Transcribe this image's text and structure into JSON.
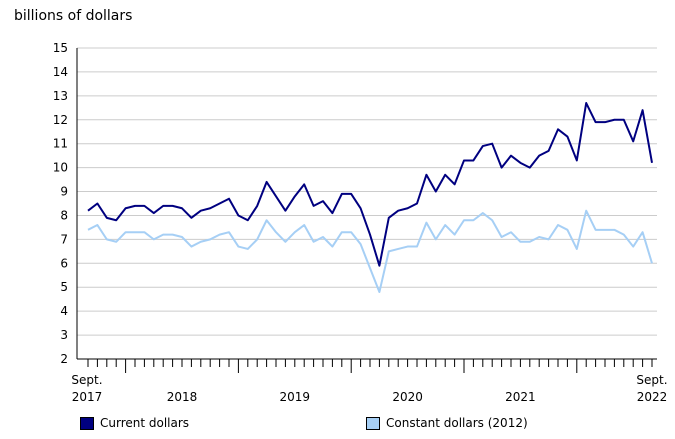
{
  "chart_data": {
    "type": "line",
    "ylabel": "billions of dollars",
    "ylim": [
      2,
      15
    ],
    "yticks": [
      2,
      3,
      4,
      5,
      6,
      7,
      8,
      9,
      10,
      11,
      12,
      13,
      14,
      15
    ],
    "grid": true,
    "x_start_label": [
      "Sept.",
      "2017"
    ],
    "x_end_label": [
      "Sept.",
      "2022"
    ],
    "x_year_labels": [
      "2018",
      "2019",
      "2020",
      "2021"
    ],
    "legend_placement": "bottom",
    "x": [
      "2017-09",
      "2017-10",
      "2017-11",
      "2017-12",
      "2018-01",
      "2018-02",
      "2018-03",
      "2018-04",
      "2018-05",
      "2018-06",
      "2018-07",
      "2018-08",
      "2018-09",
      "2018-10",
      "2018-11",
      "2018-12",
      "2019-01",
      "2019-02",
      "2019-03",
      "2019-04",
      "2019-05",
      "2019-06",
      "2019-07",
      "2019-08",
      "2019-09",
      "2019-10",
      "2019-11",
      "2019-12",
      "2020-01",
      "2020-02",
      "2020-03",
      "2020-04",
      "2020-05",
      "2020-06",
      "2020-07",
      "2020-08",
      "2020-09",
      "2020-10",
      "2020-11",
      "2020-12",
      "2021-01",
      "2021-02",
      "2021-03",
      "2021-04",
      "2021-05",
      "2021-06",
      "2021-07",
      "2021-08",
      "2021-09",
      "2021-10",
      "2021-11",
      "2021-12",
      "2022-01",
      "2022-02",
      "2022-03",
      "2022-04",
      "2022-05",
      "2022-06",
      "2022-07",
      "2022-08",
      "2022-09"
    ],
    "series": [
      {
        "name": "Current dollars",
        "color": "#000080",
        "values": [
          8.2,
          8.5,
          7.9,
          7.8,
          8.3,
          8.4,
          8.4,
          8.1,
          8.4,
          8.4,
          8.3,
          7.9,
          8.2,
          8.3,
          8.5,
          8.7,
          8.0,
          7.8,
          8.4,
          9.4,
          8.8,
          8.2,
          8.8,
          9.3,
          8.4,
          8.6,
          8.1,
          8.9,
          8.9,
          8.3,
          7.2,
          5.9,
          7.9,
          8.2,
          8.3,
          8.5,
          9.7,
          9.0,
          9.7,
          9.3,
          10.3,
          10.3,
          10.9,
          11.0,
          10.0,
          10.5,
          10.2,
          10.0,
          10.5,
          10.7,
          11.6,
          11.3,
          10.3,
          12.7,
          11.9,
          11.9,
          12.0,
          12.0,
          11.1,
          12.4,
          10.2
        ]
      },
      {
        "name": "Constant dollars (2012)",
        "color": "#a6cff5",
        "values": [
          7.4,
          7.6,
          7.0,
          6.9,
          7.3,
          7.3,
          7.3,
          7.0,
          7.2,
          7.2,
          7.1,
          6.7,
          6.9,
          7.0,
          7.2,
          7.3,
          6.7,
          6.6,
          7.0,
          7.8,
          7.3,
          6.9,
          7.3,
          7.6,
          6.9,
          7.1,
          6.7,
          7.3,
          7.3,
          6.8,
          5.8,
          4.8,
          6.5,
          6.6,
          6.7,
          6.7,
          7.7,
          7.0,
          7.6,
          7.2,
          7.8,
          7.8,
          8.1,
          7.8,
          7.1,
          7.3,
          6.9,
          6.9,
          7.1,
          7.0,
          7.6,
          7.4,
          6.6,
          8.2,
          7.4,
          7.4,
          7.4,
          7.2,
          6.7,
          7.3,
          6.0
        ]
      }
    ]
  }
}
